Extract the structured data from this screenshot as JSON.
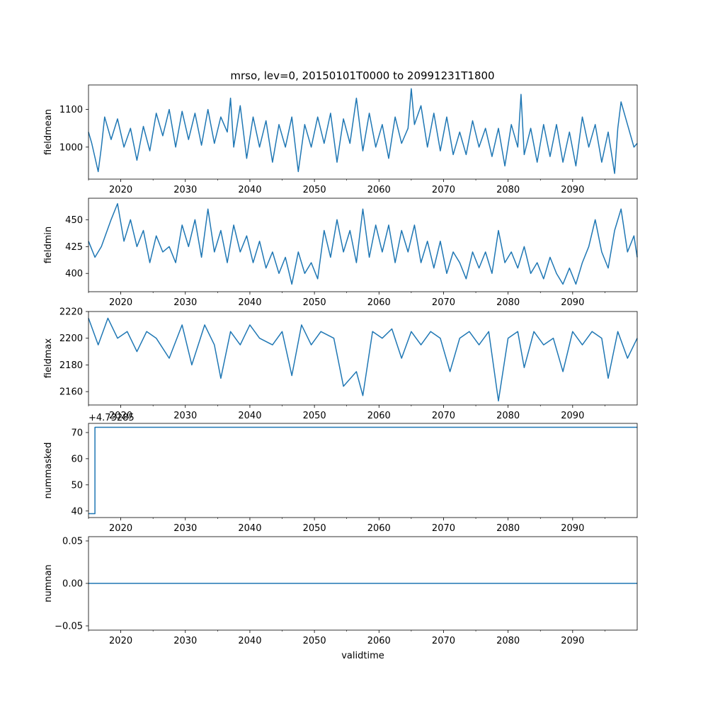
{
  "figure_title": "mrso, lev=0, 20150101T0000 to 20991231T1800",
  "chart_data": [
    {
      "type": "line",
      "name": "fieldmean",
      "title": "mrso, lev=0, 20150101T0000 to 20991231T1800",
      "xlabel": "",
      "ylabel": "fieldmean",
      "xlim": [
        2015,
        2100
      ],
      "ylim": [
        915,
        1165
      ],
      "x_ticks": [
        2020,
        2030,
        2040,
        2050,
        2060,
        2070,
        2080,
        2090
      ],
      "x_tick_labels": [
        "2020",
        "2030",
        "2040",
        "2050",
        "2060",
        "2070",
        "2080",
        "2090"
      ],
      "y_ticks": [
        1000,
        1100
      ],
      "y_tick_labels": [
        "1000",
        "1100"
      ],
      "color": "#1f77b4",
      "x": [
        2015.0,
        2015.5,
        2016.5,
        2017.0,
        2017.5,
        2018.5,
        2019.5,
        2020.5,
        2021.5,
        2022.5,
        2023.5,
        2024.5,
        2025.5,
        2026.5,
        2027.5,
        2028.5,
        2029.5,
        2030.5,
        2031.5,
        2032.5,
        2033.5,
        2034.5,
        2035.5,
        2036.5,
        2037.0,
        2037.5,
        2038.5,
        2039.5,
        2040.5,
        2041.5,
        2042.5,
        2043.5,
        2044.5,
        2045.5,
        2046.5,
        2047.5,
        2048.5,
        2049.5,
        2050.5,
        2051.5,
        2052.5,
        2053.5,
        2054.5,
        2055.5,
        2056.5,
        2057.5,
        2058.5,
        2059.5,
        2060.5,
        2061.5,
        2062.5,
        2063.5,
        2064.5,
        2065.0,
        2065.5,
        2066.5,
        2067.5,
        2068.5,
        2069.5,
        2070.5,
        2071.5,
        2072.5,
        2073.5,
        2074.5,
        2075.5,
        2076.5,
        2077.5,
        2078.5,
        2079.5,
        2080.5,
        2081.5,
        2082.0,
        2082.5,
        2083.5,
        2084.5,
        2085.5,
        2086.5,
        2087.5,
        2088.5,
        2089.5,
        2090.5,
        2091.5,
        2092.5,
        2093.5,
        2094.5,
        2095.5,
        2096.5,
        2097.0,
        2097.5,
        2098.5,
        2099.5,
        2100.0
      ],
      "values": [
        1040,
        1010,
        935,
        1000,
        1080,
        1020,
        1075,
        1000,
        1050,
        965,
        1055,
        990,
        1090,
        1030,
        1100,
        1000,
        1095,
        1020,
        1090,
        1005,
        1100,
        1010,
        1080,
        1040,
        1130,
        1000,
        1110,
        970,
        1080,
        1000,
        1070,
        960,
        1060,
        1000,
        1080,
        935,
        1060,
        1000,
        1080,
        1010,
        1090,
        960,
        1075,
        1010,
        1130,
        990,
        1090,
        1000,
        1060,
        970,
        1080,
        1010,
        1050,
        1155,
        1060,
        1110,
        1000,
        1090,
        990,
        1080,
        980,
        1040,
        980,
        1070,
        1000,
        1050,
        975,
        1050,
        950,
        1060,
        1000,
        1140,
        980,
        1050,
        960,
        1060,
        975,
        1060,
        960,
        1040,
        950,
        1080,
        1000,
        1060,
        960,
        1040,
        930,
        1050,
        1120,
        1060,
        1000,
        1010
      ]
    },
    {
      "type": "line",
      "name": "fieldmin",
      "xlabel": "",
      "ylabel": "fieldmin",
      "xlim": [
        2015,
        2100
      ],
      "ylim": [
        383,
        470
      ],
      "x_ticks": [
        2020,
        2030,
        2040,
        2050,
        2060,
        2070,
        2080,
        2090
      ],
      "x_tick_labels": [
        "2020",
        "2030",
        "2040",
        "2050",
        "2060",
        "2070",
        "2080",
        "2090"
      ],
      "y_ticks": [
        400,
        425,
        450
      ],
      "y_tick_labels": [
        "400",
        "425",
        "450"
      ],
      "color": "#1f77b4",
      "x": [
        2015.0,
        2016.0,
        2017.0,
        2018.5,
        2019.5,
        2020.5,
        2021.5,
        2022.5,
        2023.5,
        2024.5,
        2025.5,
        2026.5,
        2027.5,
        2028.5,
        2029.5,
        2030.5,
        2031.5,
        2032.5,
        2033.5,
        2034.5,
        2035.5,
        2036.5,
        2037.5,
        2038.5,
        2039.5,
        2040.5,
        2041.5,
        2042.5,
        2043.5,
        2044.5,
        2045.5,
        2046.5,
        2047.5,
        2048.5,
        2049.5,
        2050.5,
        2051.5,
        2052.5,
        2053.5,
        2054.5,
        2055.5,
        2056.5,
        2057.5,
        2058.5,
        2059.5,
        2060.5,
        2061.5,
        2062.5,
        2063.5,
        2064.5,
        2065.5,
        2066.5,
        2067.5,
        2068.5,
        2069.5,
        2070.5,
        2071.5,
        2072.5,
        2073.5,
        2074.5,
        2075.5,
        2076.5,
        2077.5,
        2078.5,
        2079.5,
        2080.5,
        2081.5,
        2082.5,
        2083.5,
        2084.5,
        2085.5,
        2086.5,
        2087.5,
        2088.5,
        2089.5,
        2090.5,
        2091.5,
        2092.5,
        2093.5,
        2094.5,
        2095.5,
        2096.5,
        2097.5,
        2098.5,
        2099.5,
        2100.0
      ],
      "values": [
        430,
        415,
        425,
        450,
        465,
        430,
        450,
        425,
        440,
        410,
        435,
        420,
        425,
        410,
        445,
        425,
        450,
        415,
        460,
        420,
        440,
        410,
        445,
        420,
        435,
        410,
        430,
        405,
        420,
        400,
        415,
        390,
        420,
        400,
        410,
        395,
        440,
        415,
        450,
        420,
        440,
        410,
        460,
        415,
        445,
        420,
        445,
        410,
        440,
        420,
        445,
        410,
        430,
        405,
        430,
        400,
        420,
        410,
        395,
        420,
        405,
        420,
        400,
        440,
        410,
        420,
        405,
        425,
        400,
        410,
        395,
        415,
        400,
        390,
        405,
        390,
        410,
        425,
        450,
        420,
        405,
        440,
        460,
        420,
        435,
        415
      ]
    },
    {
      "type": "line",
      "name": "fieldmax",
      "xlabel": "",
      "ylabel": "fieldmax",
      "xlim": [
        2015,
        2100
      ],
      "ylim": [
        2150,
        2220
      ],
      "x_ticks": [
        2020,
        2030,
        2040,
        2050,
        2060,
        2070,
        2080,
        2090
      ],
      "x_tick_labels": [
        "2020",
        "2030",
        "2040",
        "2050",
        "2060",
        "2070",
        "2080",
        "2090"
      ],
      "y_ticks": [
        2160,
        2180,
        2200,
        2220
      ],
      "y_tick_labels": [
        "2160",
        "2180",
        "2200",
        "2220"
      ],
      "color": "#1f77b4",
      "x": [
        2015.0,
        2016.5,
        2018.0,
        2019.5,
        2021.0,
        2022.5,
        2024.0,
        2025.5,
        2027.5,
        2029.5,
        2031.0,
        2033.0,
        2034.5,
        2035.5,
        2037.0,
        2038.5,
        2040.0,
        2041.5,
        2043.5,
        2045.0,
        2046.5,
        2048.0,
        2049.5,
        2051.0,
        2053.0,
        2054.5,
        2056.5,
        2057.5,
        2059.0,
        2060.5,
        2062.0,
        2063.5,
        2065.0,
        2066.5,
        2068.0,
        2069.5,
        2071.0,
        2072.5,
        2074.0,
        2075.5,
        2077.0,
        2078.5,
        2080.0,
        2081.5,
        2082.5,
        2084.0,
        2085.5,
        2087.0,
        2088.5,
        2090.0,
        2091.5,
        2093.0,
        2094.5,
        2095.5,
        2097.0,
        2098.5,
        2100.0
      ],
      "values": [
        2215,
        2195,
        2215,
        2200,
        2205,
        2190,
        2205,
        2200,
        2185,
        2210,
        2180,
        2210,
        2195,
        2170,
        2205,
        2195,
        2210,
        2200,
        2195,
        2205,
        2172,
        2210,
        2195,
        2205,
        2200,
        2164,
        2175,
        2157,
        2205,
        2200,
        2207,
        2185,
        2205,
        2195,
        2205,
        2200,
        2175,
        2200,
        2205,
        2195,
        2205,
        2153,
        2200,
        2205,
        2178,
        2205,
        2195,
        2200,
        2175,
        2205,
        2195,
        2205,
        2200,
        2170,
        2205,
        2185,
        2200
      ]
    },
    {
      "type": "line",
      "name": "nummasked",
      "xlabel": "",
      "ylabel": "nummasked",
      "offset_label": "+4.73285",
      "xlim": [
        2015,
        2100
      ],
      "ylim": [
        37.5,
        73.5
      ],
      "x_ticks": [
        2020,
        2030,
        2040,
        2050,
        2060,
        2070,
        2080,
        2090
      ],
      "x_tick_labels": [
        "2020",
        "2030",
        "2040",
        "2050",
        "2060",
        "2070",
        "2080",
        "2090"
      ],
      "y_ticks": [
        40,
        50,
        60,
        70
      ],
      "y_tick_labels": [
        "40",
        "50",
        "60",
        "70"
      ],
      "color": "#1f77b4",
      "x": [
        2015.0,
        2016.0,
        2016.0,
        2100.0
      ],
      "values": [
        39,
        39,
        72,
        72
      ]
    },
    {
      "type": "line",
      "name": "numnan",
      "xlabel": "validtime",
      "ylabel": "numnan",
      "xlim": [
        2015,
        2100
      ],
      "ylim": [
        -0.055,
        0.055
      ],
      "x_ticks": [
        2020,
        2030,
        2040,
        2050,
        2060,
        2070,
        2080,
        2090
      ],
      "x_tick_labels": [
        "2020",
        "2030",
        "2040",
        "2050",
        "2060",
        "2070",
        "2080",
        "2090"
      ],
      "y_ticks": [
        -0.05,
        0.0,
        0.05
      ],
      "y_tick_labels": [
        "−0.05",
        "0.00",
        "0.05"
      ],
      "color": "#1f77b4",
      "x": [
        2015.0,
        2100.0
      ],
      "values": [
        0.0,
        0.0
      ]
    }
  ]
}
